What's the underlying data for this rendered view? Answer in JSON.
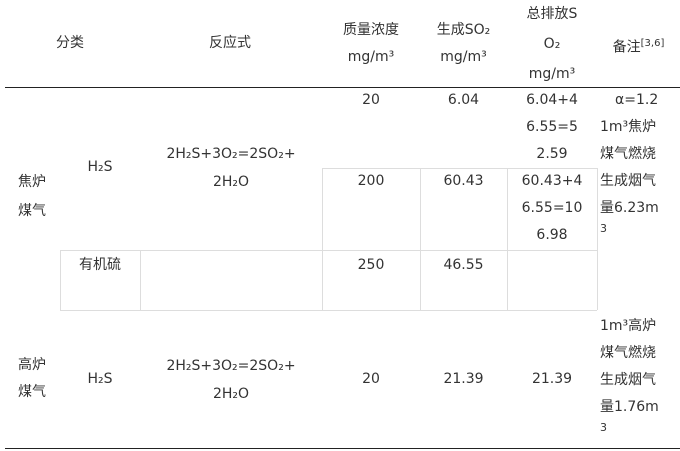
{
  "header": {
    "category": "分类",
    "reaction": "反应式",
    "concentration": [
      "质量浓度",
      "mg/m³"
    ],
    "so2_generated": [
      "生成SO₂",
      "mg/m³"
    ],
    "so2_total": [
      "总排放S",
      "O₂",
      "mg/m³"
    ],
    "remark": "备注",
    "remark_ref": "[3,6]"
  },
  "rows": {
    "coke": {
      "category": [
        "焦炉",
        "煤气"
      ],
      "h2s": {
        "species": "H₂S",
        "reaction": [
          "2H₂S+3O₂=2SO₂+",
          "2H₂O"
        ],
        "r1": {
          "concentration": "20",
          "generated": "6.04",
          "total": [
            "6.04+4",
            "6.55=5",
            "2.59"
          ]
        },
        "r2": {
          "concentration": "200",
          "generated": "60.43",
          "total": [
            "60.43+4",
            "6.55=10",
            "6.98"
          ]
        }
      },
      "organic": {
        "species": "有机硫",
        "concentration": "250",
        "generated": "46.55"
      },
      "remark": [
        "α=1.2",
        "1m³焦炉",
        "煤气燃烧",
        "生成烟气",
        "量6.23m",
        "3"
      ]
    },
    "blast": {
      "category": [
        "高炉",
        "煤气"
      ],
      "species": "H₂S",
      "reaction": [
        "2H₂S+3O₂=2SO₂+",
        "2H₂O"
      ],
      "concentration": "20",
      "generated": "21.39",
      "total": "21.39",
      "remark": [
        "1m³高炉",
        "煤气燃烧",
        "生成烟气",
        "量1.76m",
        "3"
      ]
    }
  }
}
